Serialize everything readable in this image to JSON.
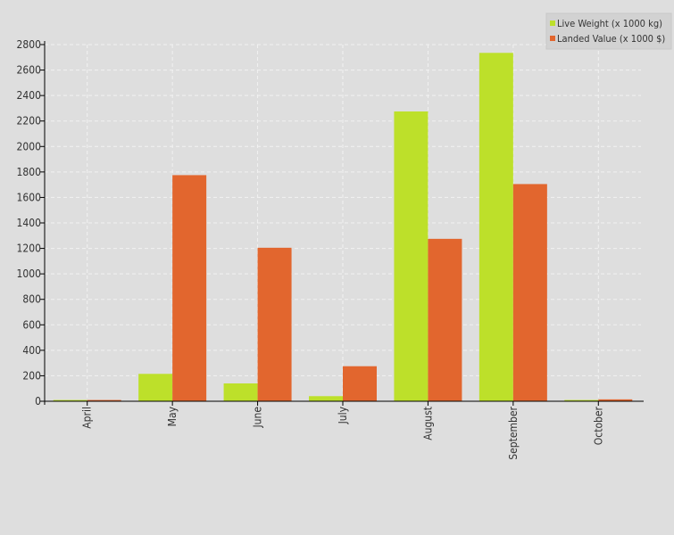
{
  "chart_data": {
    "type": "bar",
    "title": "",
    "xlabel": "",
    "ylabel": "",
    "categories": [
      "April",
      "May",
      "June",
      "July",
      "August",
      "September",
      "October"
    ],
    "series": [
      {
        "name": "Live Weight (x 1000 kg)",
        "color": "#bde02a",
        "values": [
          10,
          215,
          140,
          40,
          2275,
          2735,
          10
        ]
      },
      {
        "name": "Landed Value (x 1000 $)",
        "color": "#e2662e",
        "values": [
          10,
          1775,
          1205,
          275,
          1275,
          1705,
          15
        ]
      }
    ],
    "ylim": [
      0,
      2800
    ],
    "yticks": [
      0,
      200,
      400,
      600,
      800,
      1000,
      1200,
      1400,
      1600,
      1800,
      2000,
      2200,
      2400,
      2600,
      2800
    ],
    "grid": true,
    "legend_position": "top-right",
    "background": "#dedede",
    "grid_color": "#f2f2f2",
    "axis_color": "#000000"
  }
}
